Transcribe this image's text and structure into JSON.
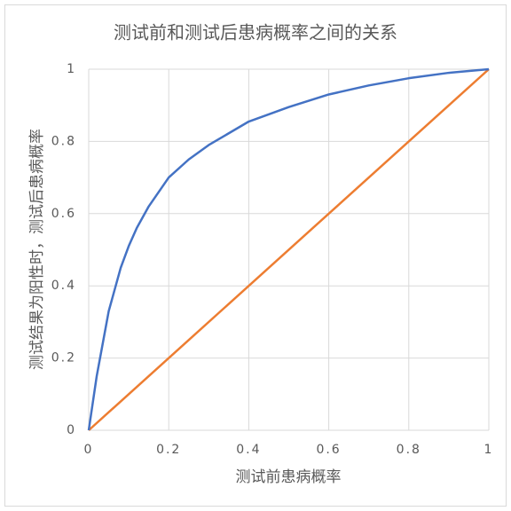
{
  "chart_data": {
    "type": "line",
    "title": "测试前和测试后患病概率之间的关系",
    "x_label": "测试前患病概率",
    "y_label": "测试结果为阳性时，测试后患病概率",
    "xlim": [
      0,
      1
    ],
    "xticks": [
      0,
      0.2,
      0.4,
      0.6,
      0.8,
      1
    ],
    "ylim": [
      0,
      1
    ],
    "yticks": [
      0,
      0.2,
      0.4,
      0.6,
      0.8,
      1
    ],
    "grid": true,
    "series": [
      {
        "color": "#4472c4",
        "x": [
          0,
          0.02,
          0.05,
          0.08,
          0.1,
          0.12,
          0.15,
          0.2,
          0.25,
          0.3,
          0.4,
          0.5,
          0.6,
          0.7,
          0.8,
          0.9,
          1
        ],
        "values": [
          0,
          0.15,
          0.33,
          0.45,
          0.51,
          0.56,
          0.62,
          0.7,
          0.75,
          0.79,
          0.855,
          0.895,
          0.93,
          0.955,
          0.975,
          0.99,
          1
        ]
      },
      {
        "color": "#ed7d31",
        "x": [
          0,
          1
        ],
        "values": [
          0,
          1
        ]
      }
    ]
  }
}
